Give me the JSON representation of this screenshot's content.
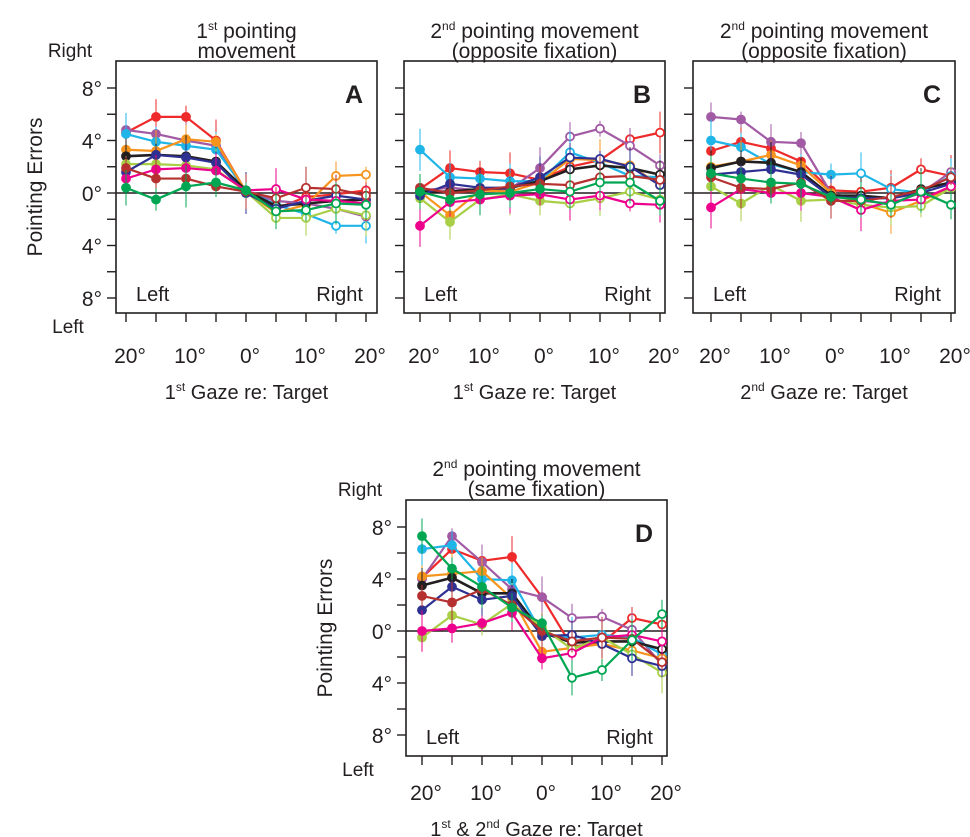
{
  "chart_data": [
    {
      "type": "line",
      "panel": "A",
      "title": "1st pointing movement",
      "title_parts": [
        "1",
        "st",
        " pointing",
        "movement"
      ],
      "xlabel_parts": [
        "1",
        "st",
        " Gaze re: Target"
      ],
      "ylabel": "Pointing Errors",
      "side_labels": {
        "top": "Right",
        "bottom": "Left"
      },
      "inner_labels": {
        "left": "Left",
        "right": "Right"
      },
      "xtick_labels": [
        "20°",
        "10°",
        "0°",
        "10°",
        "20°"
      ],
      "ytick_labels": [
        "8°",
        "4°",
        "0°",
        "4°",
        "8°"
      ],
      "x": [
        -20,
        -15,
        -10,
        -5,
        0,
        5,
        10,
        15,
        20
      ],
      "xlim": [
        -20,
        20
      ],
      "ylim": [
        -8,
        8
      ],
      "series": [
        {
          "color": "#ee2a2a",
          "values": [
            4.6,
            5.8,
            5.8,
            4.0,
            0.1,
            -1.2,
            -0.3,
            -0.1,
            0.2
          ]
        },
        {
          "color": "#a25aa4",
          "values": [
            4.8,
            4.5,
            4.0,
            3.6,
            0.0,
            -0.6,
            -0.8,
            -1.2,
            -1.8
          ]
        },
        {
          "color": "#1fb5e8",
          "values": [
            4.5,
            3.9,
            3.6,
            3.3,
            0.2,
            -0.9,
            -1.6,
            -2.5,
            -2.5
          ]
        },
        {
          "color": "#f7941d",
          "values": [
            3.3,
            3.2,
            4.1,
            3.9,
            0.1,
            -1.5,
            -0.9,
            1.3,
            1.4
          ]
        },
        {
          "color": "#231f20",
          "values": [
            2.8,
            2.9,
            2.8,
            2.4,
            0.2,
            -1.0,
            -0.8,
            -0.6,
            -0.5
          ]
        },
        {
          "color": "#a8cf45",
          "values": [
            2.2,
            2.2,
            2.1,
            1.8,
            0.1,
            -1.9,
            -1.9,
            -1.2,
            -1.7
          ]
        },
        {
          "color": "#2e3192",
          "values": [
            1.6,
            2.9,
            2.7,
            2.3,
            0.0,
            -1.2,
            -0.6,
            -0.2,
            -0.5
          ]
        },
        {
          "color": "#ec008c",
          "values": [
            1.1,
            1.8,
            1.9,
            1.7,
            0.2,
            0.3,
            -0.5,
            -0.6,
            -0.8
          ]
        },
        {
          "color": "#b5302f",
          "values": [
            1.9,
            1.1,
            1.1,
            0.5,
            0.1,
            -0.4,
            0.4,
            0.3,
            -0.2
          ]
        },
        {
          "color": "#00a651",
          "values": [
            0.4,
            -0.5,
            0.5,
            0.8,
            0.2,
            -1.4,
            -1.3,
            -0.8,
            -0.9
          ]
        }
      ]
    },
    {
      "type": "line",
      "panel": "B",
      "title": "2nd pointing movement (opposite fixation)",
      "title_parts": [
        "2",
        "nd",
        " pointing movement",
        "(opposite fixation)"
      ],
      "xlabel_parts": [
        "1",
        "st",
        " Gaze re: Target"
      ],
      "xtick_labels": [
        "20°",
        "10°",
        "0°",
        "10°",
        "20°"
      ],
      "inner_labels": {
        "left": "Left",
        "right": "Right"
      },
      "x": [
        -20,
        -15,
        -10,
        -5,
        0,
        5,
        10,
        15,
        20
      ],
      "xlim": [
        -20,
        20
      ],
      "ylim": [
        -8,
        8
      ],
      "series": [
        {
          "color": "#ee2a2a",
          "values": [
            0.3,
            1.9,
            1.6,
            1.5,
            1.0,
            2.0,
            2.5,
            4.1,
            4.6
          ]
        },
        {
          "color": "#a25aa4",
          "values": [
            0.2,
            0.4,
            0.2,
            0.3,
            1.9,
            4.3,
            4.9,
            3.6,
            2.1
          ]
        },
        {
          "color": "#1fb5e8",
          "values": [
            3.3,
            1.2,
            1.1,
            0.9,
            0.9,
            3.1,
            2.3,
            1.3,
            1.2
          ]
        },
        {
          "color": "#f7941d",
          "values": [
            0.1,
            -1.7,
            0.2,
            0.1,
            0.8,
            2.6,
            2.5,
            2.1,
            0.6
          ]
        },
        {
          "color": "#231f20",
          "values": [
            0.1,
            0.1,
            0.3,
            0.4,
            0.9,
            1.8,
            2.1,
            1.9,
            1.4
          ]
        },
        {
          "color": "#a8cf45",
          "values": [
            -0.4,
            -2.2,
            -0.5,
            -0.1,
            -0.6,
            -0.8,
            -0.4,
            0.1,
            -0.5
          ]
        },
        {
          "color": "#2e3192",
          "values": [
            -0.2,
            0.7,
            0.4,
            0.4,
            1.2,
            2.7,
            2.6,
            2.0,
            0.6
          ]
        },
        {
          "color": "#ec008c",
          "values": [
            -2.5,
            -0.7,
            -0.5,
            -0.2,
            -0.1,
            -0.5,
            -0.2,
            -0.8,
            -0.9
          ]
        },
        {
          "color": "#b5302f",
          "values": [
            0.4,
            0.0,
            0.2,
            0.5,
            0.7,
            0.6,
            1.2,
            1.3,
            1.0
          ]
        },
        {
          "color": "#00a651",
          "values": [
            0.1,
            -0.5,
            -0.1,
            0.0,
            0.3,
            0.1,
            0.8,
            0.8,
            -0.6
          ]
        }
      ]
    },
    {
      "type": "line",
      "panel": "C",
      "title": "2nd pointing movement (opposite fixation)",
      "title_parts": [
        "2",
        "nd",
        " pointing movement",
        "(opposite fixation)"
      ],
      "xlabel_parts": [
        "2",
        "nd",
        " Gaze re: Target"
      ],
      "xtick_labels": [
        "20°",
        "10°",
        "0°",
        "10°",
        "20°"
      ],
      "inner_labels": {
        "left": "Left",
        "right": "Right"
      },
      "x": [
        -20,
        -15,
        -10,
        -5,
        0,
        5,
        10,
        15,
        20
      ],
      "xlim": [
        -20,
        20
      ],
      "ylim": [
        -8,
        8
      ],
      "series": [
        {
          "color": "#ee2a2a",
          "values": [
            3.2,
            3.9,
            3.4,
            2.4,
            0.2,
            0.1,
            0.4,
            1.8,
            1.3
          ]
        },
        {
          "color": "#a25aa4",
          "values": [
            5.8,
            5.6,
            3.9,
            3.8,
            0.0,
            -0.6,
            -0.8,
            0.0,
            1.6
          ]
        },
        {
          "color": "#1fb5e8",
          "values": [
            4.0,
            3.5,
            2.2,
            1.6,
            1.4,
            1.5,
            0.3,
            0.0,
            1.3
          ]
        },
        {
          "color": "#f7941d",
          "values": [
            2.0,
            2.4,
            2.9,
            2.1,
            0.0,
            -0.8,
            -1.5,
            -0.6,
            0.4
          ]
        },
        {
          "color": "#231f20",
          "values": [
            1.9,
            2.4,
            2.3,
            1.6,
            -0.2,
            -0.2,
            -0.4,
            0.3,
            0.8
          ]
        },
        {
          "color": "#a8cf45",
          "values": [
            0.5,
            -0.8,
            0.6,
            -0.6,
            -0.5,
            -0.9,
            -1.1,
            -1.0,
            0.4
          ]
        },
        {
          "color": "#2e3192",
          "values": [
            1.4,
            1.6,
            1.8,
            1.4,
            -0.3,
            -0.4,
            -0.4,
            0.0,
            0.7
          ]
        },
        {
          "color": "#ec008c",
          "values": [
            -1.1,
            0.3,
            0.0,
            0.0,
            -0.3,
            -1.3,
            -0.6,
            -0.5,
            0.5
          ]
        },
        {
          "color": "#b5302f",
          "values": [
            1.2,
            0.4,
            0.3,
            0.8,
            -0.6,
            -0.6,
            -0.3,
            0.2,
            1.2
          ]
        },
        {
          "color": "#00a651",
          "values": [
            1.5,
            1.1,
            0.8,
            0.7,
            -0.3,
            -0.5,
            -0.9,
            0.1,
            -0.9
          ]
        }
      ]
    },
    {
      "type": "line",
      "panel": "D",
      "title": "2nd pointing movement (same fixation)",
      "title_parts": [
        "2",
        "nd",
        " pointing movement",
        "(same fixation)"
      ],
      "xlabel_parts": [
        "1",
        "st",
        " & 2",
        "nd",
        " Gaze re: Target"
      ],
      "ylabel": "Pointing Errors",
      "side_labels": {
        "top": "Right",
        "bottom": "Left"
      },
      "inner_labels": {
        "left": "Left",
        "right": "Right"
      },
      "xtick_labels": [
        "20°",
        "10°",
        "0°",
        "10°",
        "20°"
      ],
      "ytick_labels": [
        "8°",
        "4°",
        "0°",
        "4°",
        "8°"
      ],
      "x": [
        -20,
        -15,
        -10,
        -5,
        0,
        5,
        10,
        15,
        20
      ],
      "xlim": [
        -20,
        20
      ],
      "ylim": [
        -8,
        8
      ],
      "series": [
        {
          "color": "#ee2a2a",
          "values": [
            4.1,
            6.3,
            5.4,
            5.7,
            2.6,
            -1.2,
            -0.9,
            1.0,
            0.5
          ]
        },
        {
          "color": "#a25aa4",
          "values": [
            4.0,
            7.3,
            5.3,
            3.2,
            2.6,
            1.0,
            1.1,
            0.1,
            -2.6
          ]
        },
        {
          "color": "#1fb5e8",
          "values": [
            6.3,
            6.6,
            4.0,
            3.9,
            -0.2,
            -0.5,
            -0.3,
            -0.5,
            -1.8
          ]
        },
        {
          "color": "#f7941d",
          "values": [
            4.2,
            4.4,
            4.6,
            2.5,
            -1.6,
            -1.3,
            -1.0,
            -1.5,
            -2.1
          ]
        },
        {
          "color": "#231f20",
          "values": [
            3.5,
            4.1,
            2.9,
            2.9,
            -0.1,
            -0.9,
            -0.8,
            -0.8,
            -1.4
          ]
        },
        {
          "color": "#a8cf45",
          "values": [
            -0.5,
            1.2,
            0.5,
            2.1,
            0.3,
            -1.4,
            -0.5,
            -1.8,
            -3.2
          ]
        },
        {
          "color": "#2e3192",
          "values": [
            1.6,
            3.4,
            2.4,
            2.7,
            -0.4,
            -0.3,
            -1.0,
            -2.1,
            -2.7
          ]
        },
        {
          "color": "#ec008c",
          "values": [
            0.0,
            0.2,
            0.6,
            1.4,
            -2.1,
            -1.7,
            -0.5,
            -0.3,
            -0.8
          ]
        },
        {
          "color": "#b5302f",
          "values": [
            2.7,
            2.2,
            3.2,
            2.0,
            0.0,
            -0.8,
            -0.5,
            -0.6,
            -2.4
          ]
        },
        {
          "color": "#00a651",
          "values": [
            7.3,
            4.8,
            3.4,
            1.8,
            0.6,
            -3.6,
            -3.0,
            -0.7,
            1.3
          ]
        }
      ]
    }
  ]
}
